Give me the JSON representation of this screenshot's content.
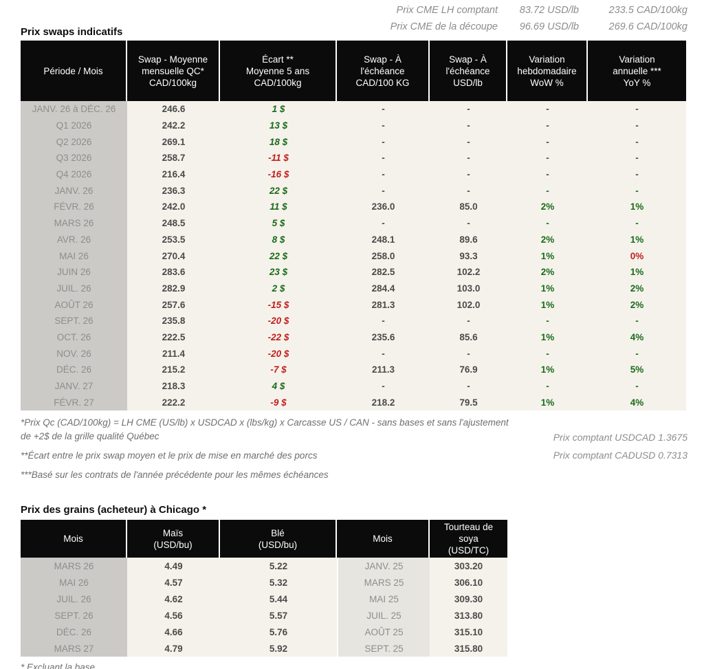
{
  "colors": {
    "positive_green": "#1a6b1a",
    "negative_red": "#c01e1e",
    "value_dark": "#4a4a4a",
    "muted_gray": "#8d8d8d",
    "header_bg": "#0b0b0b",
    "body_bg": "#f5f2eb",
    "period_col_bg": "#cbcac6",
    "soy_month_col_bg": "#e7e5e0"
  },
  "top_info": {
    "rows": [
      {
        "label": "Prix CME LH comptant",
        "usd": "83.72 USD/lb",
        "cad": "233.5 CAD/100kg"
      },
      {
        "label": "Prix CME de la découpe",
        "usd": "96.69 USD/lb",
        "cad": "269.6 CAD/100kg"
      }
    ]
  },
  "swaps_table": {
    "title": "Prix swaps indicatifs",
    "headers": [
      [
        "Période / Mois"
      ],
      [
        "Swap - Moyenne",
        "mensuelle QC*",
        "CAD/100kg"
      ],
      [
        "Écart **",
        "Moyenne 5 ans",
        "CAD/100kg"
      ],
      [
        "Swap - À",
        "l'échéance",
        "CAD/100 KG"
      ],
      [
        "Swap - À",
        "l'échéance",
        "USD/lb"
      ],
      [
        "Variation",
        "hebdomadaire",
        "WoW %"
      ],
      [
        "Variation",
        "annuelle ***",
        "YoY %"
      ]
    ],
    "rows": [
      {
        "period": "JANV. 26 à  DÉC. 26",
        "avg": "246.6",
        "ecart": "1 $",
        "ecart_color": "green",
        "cad": "-",
        "usd": "-",
        "wow": "-",
        "wow_color": "dark",
        "yoy": "-",
        "yoy_color": "dark"
      },
      {
        "period": "Q1 2026",
        "avg": "242.2",
        "ecart": "13 $",
        "ecart_color": "green",
        "cad": "-",
        "usd": "-",
        "wow": "-",
        "wow_color": "dark",
        "yoy": "-",
        "yoy_color": "dark"
      },
      {
        "period": "Q2 2026",
        "avg": "269.1",
        "ecart": "18 $",
        "ecart_color": "green",
        "cad": "-",
        "usd": "-",
        "wow": "-",
        "wow_color": "dark",
        "yoy": "-",
        "yoy_color": "dark"
      },
      {
        "period": "Q3 2026",
        "avg": "258.7",
        "ecart": "-11 $",
        "ecart_color": "red",
        "cad": "-",
        "usd": "-",
        "wow": "-",
        "wow_color": "dark",
        "yoy": "-",
        "yoy_color": "dark"
      },
      {
        "period": "Q4 2026",
        "avg": "216.4",
        "ecart": "-16 $",
        "ecart_color": "red",
        "cad": "-",
        "usd": "-",
        "wow": "-",
        "wow_color": "dark",
        "yoy": "-",
        "yoy_color": "dark"
      },
      {
        "period": "JANV. 26",
        "avg": "236.3",
        "ecart": "22 $",
        "ecart_color": "green",
        "cad": "-",
        "usd": "-",
        "wow": "-",
        "wow_color": "green",
        "yoy": "-",
        "yoy_color": "green"
      },
      {
        "period": "FÉVR. 26",
        "avg": "242.0",
        "ecart": "11 $",
        "ecart_color": "green",
        "cad": "236.0",
        "usd": "85.0",
        "wow": "2%",
        "wow_color": "green",
        "yoy": "1%",
        "yoy_color": "green"
      },
      {
        "period": "MARS 26",
        "avg": "248.5",
        "ecart": "5 $",
        "ecart_color": "green",
        "cad": "-",
        "usd": "-",
        "wow": "-",
        "wow_color": "green",
        "yoy": "-",
        "yoy_color": "green"
      },
      {
        "period": "AVR. 26",
        "avg": "253.5",
        "ecart": "8 $",
        "ecart_color": "green",
        "cad": "248.1",
        "usd": "89.6",
        "wow": "2%",
        "wow_color": "green",
        "yoy": "1%",
        "yoy_color": "green"
      },
      {
        "period": "MAI 26",
        "avg": "270.4",
        "ecart": "22 $",
        "ecart_color": "green",
        "cad": "258.0",
        "usd": "93.3",
        "wow": "1%",
        "wow_color": "green",
        "yoy": "0%",
        "yoy_color": "red"
      },
      {
        "period": "JUIN 26",
        "avg": "283.6",
        "ecart": "23 $",
        "ecart_color": "green",
        "cad": "282.5",
        "usd": "102.2",
        "wow": "2%",
        "wow_color": "green",
        "yoy": "1%",
        "yoy_color": "green"
      },
      {
        "period": "JUIL. 26",
        "avg": "282.9",
        "ecart": "2 $",
        "ecart_color": "green",
        "cad": "284.4",
        "usd": "103.0",
        "wow": "1%",
        "wow_color": "green",
        "yoy": "2%",
        "yoy_color": "green"
      },
      {
        "period": "AOÛT 26",
        "avg": "257.6",
        "ecart": "-15 $",
        "ecart_color": "red",
        "cad": "281.3",
        "usd": "102.0",
        "wow": "1%",
        "wow_color": "green",
        "yoy": "2%",
        "yoy_color": "green"
      },
      {
        "period": "SEPT. 26",
        "avg": "235.8",
        "ecart": "-20 $",
        "ecart_color": "red",
        "cad": "-",
        "usd": "-",
        "wow": "-",
        "wow_color": "green",
        "yoy": "-",
        "yoy_color": "green"
      },
      {
        "period": "OCT. 26",
        "avg": "222.5",
        "ecart": "-22 $",
        "ecart_color": "red",
        "cad": "235.6",
        "usd": "85.6",
        "wow": "1%",
        "wow_color": "green",
        "yoy": "4%",
        "yoy_color": "green"
      },
      {
        "period": "NOV. 26",
        "avg": "211.4",
        "ecart": "-20 $",
        "ecart_color": "red",
        "cad": "-",
        "usd": "-",
        "wow": "-",
        "wow_color": "green",
        "yoy": "-",
        "yoy_color": "green"
      },
      {
        "period": "DÉC. 26",
        "avg": "215.2",
        "ecart": "-7 $",
        "ecart_color": "red",
        "cad": "211.3",
        "usd": "76.9",
        "wow": "1%",
        "wow_color": "green",
        "yoy": "5%",
        "yoy_color": "green"
      },
      {
        "period": "JANV. 27",
        "avg": "218.3",
        "ecart": "4 $",
        "ecart_color": "green",
        "cad": "-",
        "usd": "-",
        "wow": "-",
        "wow_color": "green",
        "yoy": "-",
        "yoy_color": "green"
      },
      {
        "period": "FÉVR. 27",
        "avg": "222.2",
        "ecart": "-9 $",
        "ecart_color": "red",
        "cad": "218.2",
        "usd": "79.5",
        "wow": "1%",
        "wow_color": "green",
        "yoy": "4%",
        "yoy_color": "green"
      }
    ]
  },
  "footnotes": {
    "left": [
      "*Prix Qc (CAD/100kg) = LH CME (US/lb) x USDCAD x (lbs/kg) x Carcasse US / CAN - sans bases et sans l'ajustement de +2$ de la grille qualité Québec",
      "**Écart entre le prix swap moyen et le prix de mise en marché des porcs",
      "***Basé sur les contrats de l'année précédente pour les mêmes échéances"
    ],
    "right": [
      "Prix comptant USDCAD 1.3675",
      "Prix comptant CADUSD 0.7313"
    ]
  },
  "grains_table": {
    "title": "Prix des grains (acheteur) à Chicago *",
    "headers": [
      [
        "Mois"
      ],
      [
        "Maïs",
        "(USD/bu)"
      ],
      [
        "Blé",
        "(USD/bu)"
      ],
      [
        "Mois"
      ],
      [
        "Tourteau de",
        "soya",
        "(USD/TC)"
      ]
    ],
    "rows": [
      {
        "month_grain": "MARS 26",
        "corn": "4.49",
        "wheat": "5.22",
        "month_soy": "JANV. 25",
        "soymeal": "303.20"
      },
      {
        "month_grain": "MAI 26",
        "corn": "4.57",
        "wheat": "5.32",
        "month_soy": "MARS 25",
        "soymeal": "306.10"
      },
      {
        "month_grain": "JUIL. 26",
        "corn": "4.62",
        "wheat": "5.44",
        "month_soy": "MAI 25",
        "soymeal": "309.30"
      },
      {
        "month_grain": "SEPT. 26",
        "corn": "4.56",
        "wheat": "5.57",
        "month_soy": "JUIL. 25",
        "soymeal": "313.80"
      },
      {
        "month_grain": "DÉC. 26",
        "corn": "4.66",
        "wheat": "5.76",
        "month_soy": "AOÛT 25",
        "soymeal": "315.10"
      },
      {
        "month_grain": "MARS 27",
        "corn": "4.79",
        "wheat": "5.92",
        "month_soy": "SEPT. 25",
        "soymeal": "315.80"
      }
    ],
    "footnote": "* Excluant la base"
  }
}
